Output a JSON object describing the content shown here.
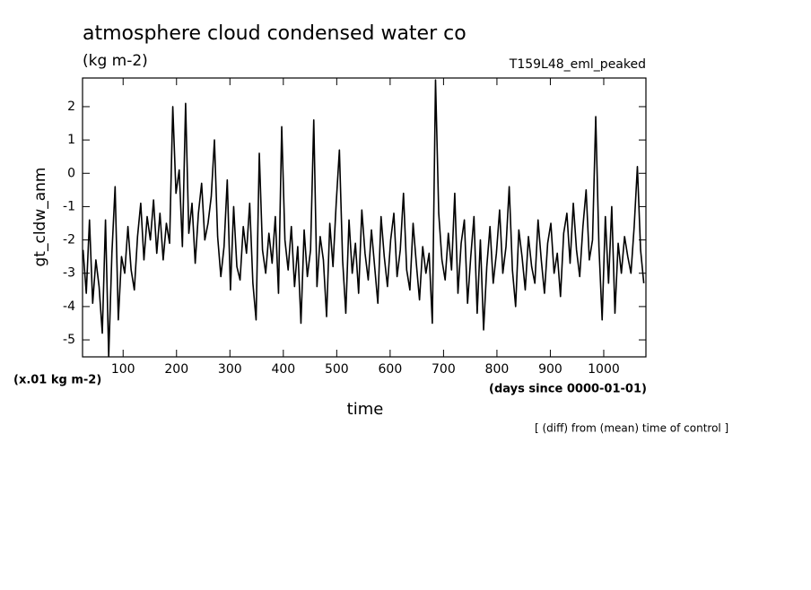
{
  "chart_data": {
    "type": "line",
    "title": "atmosphere cloud condensed water co",
    "subtitle": "(kg m-2)",
    "annotation": "T159L48_eml_peaked",
    "ylabel": "gt_cldw_anm",
    "yunits": "(x.01 kg m-2)",
    "xunits": "(days since 0000-01-01)",
    "xlabel": "time",
    "footnote": "[ (diff) from (mean) time of control ]",
    "xlim": [
      24,
      1079
    ],
    "ylim": [
      -5.51,
      2.86
    ],
    "xticks": [
      100,
      200,
      300,
      400,
      500,
      600,
      700,
      800,
      900,
      1000
    ],
    "yticks": [
      -5,
      -4,
      -3,
      -2,
      -1,
      0,
      1,
      2
    ],
    "series": [
      {
        "name": "gt_cldw_anm",
        "color": "#000000",
        "x": [
          25,
          31,
          37,
          43,
          49,
          55,
          61,
          67,
          73,
          79,
          85,
          91,
          97,
          103,
          109,
          115,
          121,
          127,
          133,
          139,
          145,
          151,
          157,
          163,
          169,
          175,
          181,
          187,
          193,
          199,
          205,
          211,
          217,
          223,
          229,
          235,
          241,
          247,
          253,
          259,
          265,
          271,
          277,
          283,
          289,
          295,
          301,
          307,
          313,
          319,
          325,
          331,
          337,
          343,
          349,
          355,
          361,
          367,
          373,
          379,
          385,
          391,
          397,
          403,
          409,
          415,
          421,
          427,
          433,
          439,
          445,
          451,
          457,
          463,
          469,
          475,
          481,
          487,
          493,
          499,
          505,
          511,
          517,
          523,
          529,
          535,
          541,
          547,
          553,
          559,
          565,
          571,
          577,
          583,
          589,
          595,
          601,
          607,
          613,
          619,
          625,
          631,
          637,
          643,
          649,
          655,
          661,
          667,
          673,
          679,
          685,
          691,
          697,
          703,
          709,
          715,
          721,
          727,
          733,
          739,
          745,
          751,
          757,
          763,
          769,
          775,
          781,
          787,
          793,
          799,
          805,
          811,
          817,
          823,
          829,
          835,
          841,
          847,
          853,
          859,
          865,
          871,
          877,
          883,
          889,
          895,
          901,
          907,
          913,
          919,
          925,
          931,
          937,
          943,
          949,
          955,
          961,
          967,
          973,
          979,
          985,
          991,
          997,
          1003,
          1009,
          1015,
          1021,
          1027,
          1033,
          1039,
          1045,
          1051,
          1057,
          1063,
          1069,
          1075
        ],
        "values": [
          -2.3,
          -3.6,
          -1.4,
          -3.9,
          -2.6,
          -3.4,
          -4.8,
          -1.4,
          -5.5,
          -2.4,
          -0.4,
          -4.4,
          -2.5,
          -3.0,
          -1.6,
          -2.9,
          -3.5,
          -1.9,
          -0.9,
          -2.6,
          -1.3,
          -2.0,
          -0.8,
          -2.4,
          -1.2,
          -2.6,
          -1.5,
          -2.1,
          2.0,
          -0.6,
          0.1,
          -2.2,
          2.1,
          -1.8,
          -0.9,
          -2.7,
          -1.2,
          -0.3,
          -2.0,
          -1.5,
          -0.7,
          1.0,
          -1.9,
          -3.1,
          -2.2,
          -0.2,
          -3.5,
          -1.0,
          -2.8,
          -3.2,
          -1.6,
          -2.4,
          -0.9,
          -3.3,
          -4.4,
          0.6,
          -2.3,
          -3.0,
          -1.8,
          -2.7,
          -1.3,
          -3.6,
          1.4,
          -2.0,
          -2.9,
          -1.6,
          -3.4,
          -2.2,
          -4.5,
          -1.7,
          -3.1,
          -2.3,
          1.6,
          -3.4,
          -1.9,
          -2.6,
          -4.3,
          -1.5,
          -2.8,
          -0.9,
          0.7,
          -2.6,
          -4.2,
          -1.4,
          -3.0,
          -2.1,
          -3.6,
          -1.1,
          -2.4,
          -3.2,
          -1.7,
          -2.8,
          -3.9,
          -1.3,
          -2.5,
          -3.4,
          -2.0,
          -1.2,
          -3.1,
          -2.3,
          -0.6,
          -2.9,
          -3.5,
          -1.5,
          -2.7,
          -3.8,
          -2.2,
          -3.0,
          -2.4,
          -4.5,
          2.8,
          -1.2,
          -2.6,
          -3.2,
          -1.8,
          -2.9,
          -0.6,
          -3.6,
          -2.1,
          -1.4,
          -3.9,
          -2.5,
          -1.3,
          -4.2,
          -2.0,
          -4.7,
          -2.8,
          -1.6,
          -3.3,
          -2.4,
          -1.1,
          -3.0,
          -2.2,
          -0.4,
          -2.9,
          -4.0,
          -1.7,
          -2.5,
          -3.5,
          -1.9,
          -2.8,
          -3.3,
          -1.4,
          -2.6,
          -3.6,
          -2.1,
          -1.5,
          -3.0,
          -2.4,
          -3.7,
          -1.8,
          -1.2,
          -2.7,
          -0.9,
          -2.3,
          -3.1,
          -1.6,
          -0.5,
          -2.6,
          -2.0,
          1.7,
          -2.2,
          -4.4,
          -1.3,
          -3.3,
          -1.0,
          -4.2,
          -2.1,
          -3.0,
          -1.9,
          -2.5,
          -3.0,
          -1.6,
          0.2,
          -2.3,
          -3.3
        ]
      }
    ]
  }
}
